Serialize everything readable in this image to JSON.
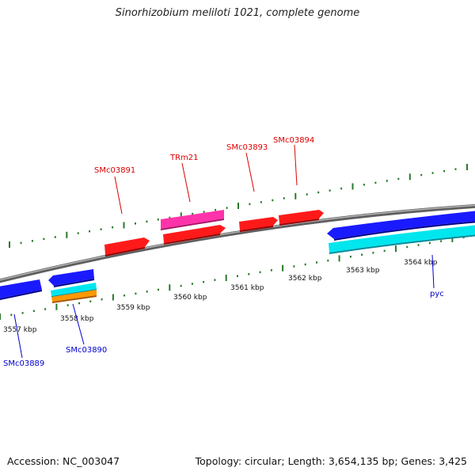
{
  "title": "Sinorhizobium meliloti 1021, complete genome",
  "footer": {
    "accession": "Accession: NC_003047",
    "summary": "Topology: circular; Length: 3,654,135 bp; Genes: 3,425"
  },
  "colors": {
    "backbone": "#8a8a8a",
    "forward_gene": "#ff1a1a",
    "reverse_gene": "#1a1aff",
    "trna": "#ff33aa",
    "cyan_feature": "#00e6ee",
    "orange_feature": "#ff9900",
    "tick_green": "#2a7a2a",
    "label_red": "#dd0000",
    "label_blue": "#0000cc"
  },
  "scale_ticks": [
    "3557 kbp",
    "3558 kbp",
    "3559 kbp",
    "3560 kbp",
    "3561 kbp",
    "3562 kbp",
    "3563 kbp",
    "3564 kbp"
  ],
  "gene_labels_top": [
    "SMc03891",
    "TRm21",
    "SMc03893",
    "SMc03894"
  ],
  "gene_labels_bottom": [
    "SMc03889",
    "SMc03890",
    "pyc"
  ]
}
